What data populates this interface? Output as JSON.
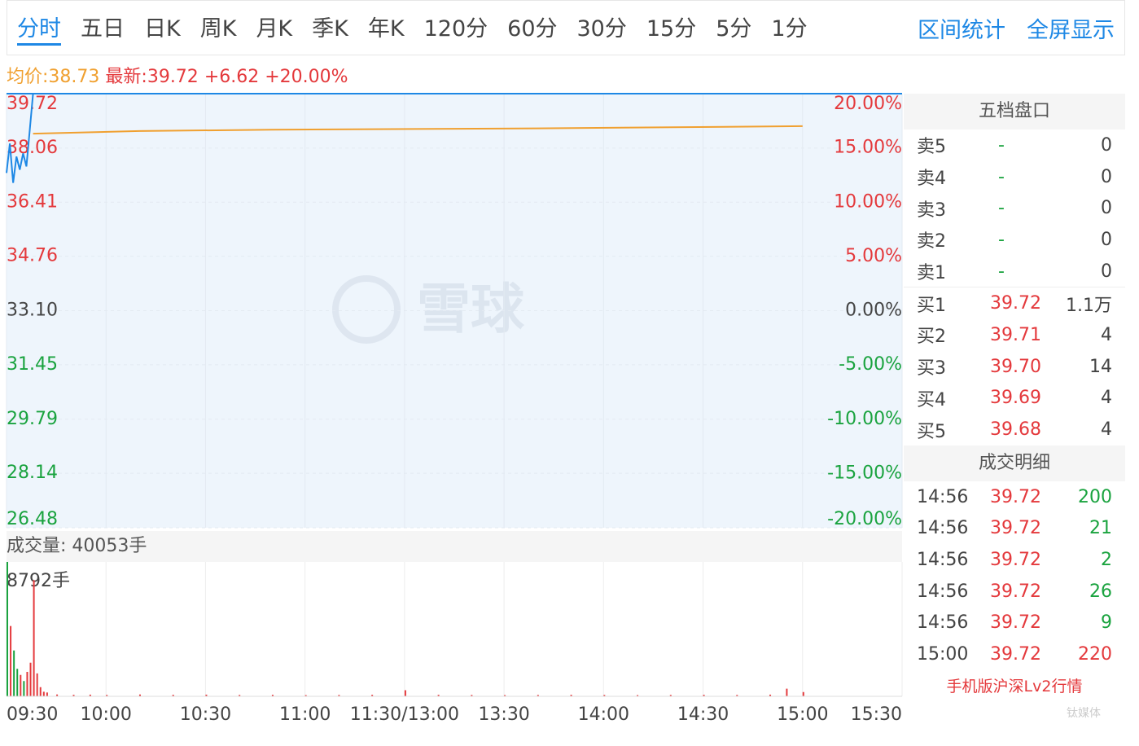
{
  "tabs": [
    "分时",
    "五日",
    "日K",
    "周K",
    "月K",
    "季K",
    "年K",
    "120分",
    "60分",
    "30分",
    "15分",
    "5分",
    "1分"
  ],
  "tools": [
    "区间统计",
    "全屏显示"
  ],
  "summary": {
    "avg": "均价:38.73",
    "latest": "最新:39.72",
    "change": "+6.62",
    "pct": "+20.00%"
  },
  "watermark": "雪球",
  "credit": "钛媒体",
  "chart_data": [
    {
      "type": "line",
      "xlim": [
        0,
        270
      ],
      "xticks": [
        {
          "value": 0,
          "label": "09:30"
        },
        {
          "value": 30,
          "label": "10:00"
        },
        {
          "value": 60,
          "label": "10:30"
        },
        {
          "value": 90,
          "label": "11:00"
        },
        {
          "value": 120,
          "label": "11:30/13:00"
        },
        {
          "value": 150,
          "label": "13:30"
        },
        {
          "value": 180,
          "label": "14:00"
        },
        {
          "value": 210,
          "label": "14:30"
        },
        {
          "value": 240,
          "label": "15:00"
        },
        {
          "value": 270,
          "label": "15:30"
        }
      ],
      "ylim": [
        26.48,
        39.72
      ],
      "yticks": [
        39.72,
        38.06,
        36.41,
        34.76,
        {
          "value": 33.1,
          "label": "33.10"
        },
        31.45,
        29.79,
        28.14,
        26.48
      ],
      "y2lim": [
        -20,
        20
      ],
      "y2ticks": [
        {
          "value": 20,
          "label": "20.00%"
        },
        {
          "value": 15,
          "label": "15.00%"
        },
        {
          "value": 10,
          "label": "10.00%"
        },
        {
          "value": 5,
          "label": "5.00%"
        },
        {
          "value": 0,
          "label": "0.00%"
        },
        {
          "value": -5,
          "label": "-5.00%"
        },
        {
          "value": -10,
          "label": "-10.00%"
        },
        {
          "value": -15,
          "label": "-15.00%"
        },
        {
          "value": -20,
          "label": "-20.00%"
        }
      ],
      "grid": true,
      "series": [
        {
          "color": "#1e88e5",
          "x": [
            0,
            1,
            2,
            3,
            4,
            5,
            6,
            7,
            8,
            240
          ],
          "values": [
            37.3,
            38.2,
            37.0,
            37.8,
            37.4,
            37.9,
            37.5,
            38.6,
            39.72,
            39.72
          ]
        },
        {
          "color": "#f0a030",
          "x": [
            8,
            40,
            80,
            160,
            230,
            240
          ],
          "values": [
            38.5,
            38.58,
            38.62,
            38.66,
            38.72,
            38.73
          ]
        }
      ]
    },
    {
      "type": "bar",
      "title": "成交量: 40053手",
      "xlim": [
        0,
        270
      ],
      "ylim": [
        0,
        8792
      ],
      "yticks": [
        {
          "value": 8792,
          "label": "8792手"
        }
      ],
      "x": [
        0,
        1,
        2,
        3,
        4,
        5,
        6,
        7,
        8,
        9,
        10,
        11,
        12,
        15,
        20,
        25,
        30,
        40,
        50,
        60,
        70,
        80,
        90,
        100,
        110,
        120,
        130,
        140,
        150,
        160,
        170,
        180,
        190,
        200,
        210,
        220,
        230,
        235,
        240
      ],
      "values": [
        8792,
        4600,
        3000,
        1800,
        1400,
        1000,
        1600,
        2200,
        7600,
        1500,
        600,
        300,
        250,
        120,
        100,
        110,
        90,
        120,
        100,
        110,
        90,
        100,
        80,
        90,
        100,
        400,
        100,
        90,
        80,
        90,
        100,
        90,
        80,
        90,
        100,
        90,
        110,
        500,
        280
      ],
      "colors": [
        "#1aa33f",
        "#e4393c",
        "#1aa33f",
        "#1aa33f",
        "#e4393c",
        "#1aa33f",
        "#e4393c",
        "#e4393c",
        "#e4393c",
        "#e4393c",
        "#e4393c",
        "#e4393c",
        "#e4393c",
        "#e4393c",
        "#e4393c",
        "#e4393c",
        "#e4393c",
        "#e4393c",
        "#e4393c",
        "#e4393c",
        "#e4393c",
        "#e4393c",
        "#e4393c",
        "#e4393c",
        "#e4393c",
        "#e4393c",
        "#e4393c",
        "#e4393c",
        "#e4393c",
        "#e4393c",
        "#e4393c",
        "#e4393c",
        "#e4393c",
        "#e4393c",
        "#e4393c",
        "#e4393c",
        "#e4393c",
        "#e4393c",
        "#e4393c"
      ]
    }
  ],
  "order_book": {
    "title": "五档盘口",
    "rows": [
      [
        "卖5",
        "-",
        "0"
      ],
      [
        "卖4",
        "-",
        "0"
      ],
      [
        "卖3",
        "-",
        "0"
      ],
      [
        "卖2",
        "-",
        "0"
      ],
      [
        "卖1",
        "-",
        "0"
      ],
      [
        "买1",
        "39.72",
        "1.1万"
      ],
      [
        "买2",
        "39.71",
        "4"
      ],
      [
        "买3",
        "39.70",
        "14"
      ],
      [
        "买4",
        "39.69",
        "4"
      ],
      [
        "买5",
        "39.68",
        "4"
      ]
    ]
  },
  "trades": {
    "title": "成交明细",
    "rows": [
      [
        "14:56",
        "39.72",
        "200"
      ],
      [
        "14:56",
        "39.72",
        "21"
      ],
      [
        "14:56",
        "39.72",
        "2"
      ],
      [
        "14:56",
        "39.72",
        "26"
      ],
      [
        "14:56",
        "39.72",
        "9"
      ],
      [
        "15:00",
        "39.72",
        "220"
      ]
    ],
    "link": "手机版沪深Lv2行情"
  }
}
